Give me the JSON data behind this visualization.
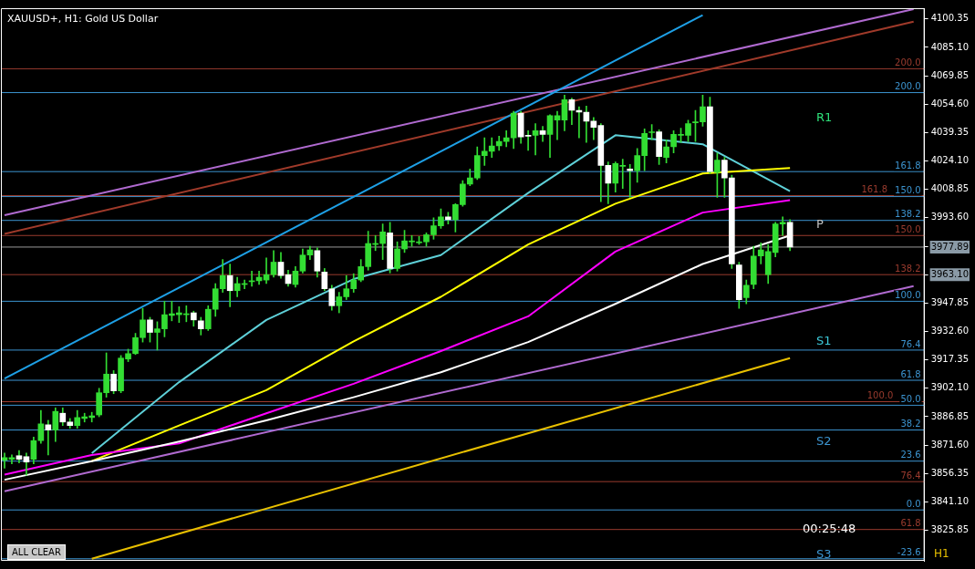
{
  "chart_data": {
    "type": "candlestick",
    "title": "XAUUSD+, H1:  Gold US Dollar",
    "color": "#33dd33",
    "colors": [
      "#33dd33",
      "#33dd33",
      "#ffffff",
      "#ffffff",
      "#33dd33",
      "#33dd33",
      "#ffffff",
      "#33dd33",
      "#ffffff",
      "#ffffff",
      "#33dd33",
      "#33dd33",
      "#33dd33",
      "#33dd33",
      "#33dd33",
      "#ffffff",
      "#33dd33",
      "#33dd33",
      "#33dd33",
      "#33dd33",
      "#ffffff",
      "#33dd33",
      "#33dd33",
      "#33dd33",
      "#33dd33",
      "#33dd33",
      "#ffffff",
      "#ffffff",
      "#33dd33",
      "#33dd33",
      "#33dd33",
      "#ffffff",
      "#33dd33",
      "#33dd33",
      "#33dd33",
      "#33dd33",
      "#33dd33",
      "#33dd33",
      "#ffffff",
      "#ffffff",
      "#33dd33",
      "#33dd33",
      "#33dd33",
      "#ffffff",
      "#ffffff",
      "#ffffff",
      "#33dd33",
      "#33dd33",
      "#33dd33",
      "#33dd33",
      "#33dd33",
      "#33dd33",
      "#33dd33",
      "#ffffff",
      "#33dd33",
      "#33dd33",
      "#33dd33",
      "#33dd33",
      "#33dd33",
      "#33dd33",
      "#33dd33",
      "#ffffff",
      "#33dd33",
      "#33dd33",
      "#33dd33",
      "#33dd33",
      "#33dd33",
      "#33dd33",
      "#33dd33",
      "#33dd33",
      "#33dd33",
      "#ffffff",
      "#ffffff",
      "#33dd33",
      "#ffffff",
      "#33dd33",
      "#33dd33",
      "#33dd33",
      "#ffffff",
      "#ffffff",
      "#ffffff",
      "#ffffff",
      "#ffffff",
      "#ffffff",
      "#33dd33",
      "#33dd33",
      "#ffffff",
      "#33dd33",
      "#33dd33",
      "#33dd33",
      "#ffffff",
      "#33dd33",
      "#33dd33",
      "#33dd33",
      "#33dd33",
      "#33dd33",
      "#33dd33",
      "#ffffff",
      "#33dd33",
      "#ffffff",
      "#ffffff",
      "#ffffff",
      "#33dd33",
      "#33dd33",
      "#33dd33",
      "#33dd33",
      "#33dd33",
      "#33dd33",
      "#ffffff",
      null,
      null,
      null,
      null,
      null,
      null,
      null,
      null,
      null,
      null,
      null,
      null,
      null,
      null,
      null,
      null,
      null,
      null
    ],
    "categories": [
      null,
      null,
      null,
      null,
      null,
      null,
      null,
      null,
      null,
      null,
      null,
      null,
      null,
      null,
      null,
      null,
      null,
      null,
      null,
      null,
      null,
      null,
      null,
      null,
      null,
      null,
      null,
      null,
      null,
      null,
      null,
      null,
      null,
      null,
      null,
      null,
      null,
      null,
      null,
      null,
      null,
      null,
      null,
      null,
      null,
      null,
      null,
      null,
      null,
      null,
      null,
      null,
      null,
      null,
      null,
      null,
      null,
      null,
      null,
      null,
      null,
      null,
      null,
      null,
      null,
      null,
      null,
      null,
      null,
      null,
      null,
      null,
      null,
      null,
      null,
      null,
      null,
      null,
      null,
      null,
      null,
      null,
      null,
      null,
      null,
      null,
      null,
      null,
      null,
      null,
      null,
      null,
      null,
      null,
      null,
      null,
      null,
      null,
      null,
      null,
      null,
      null,
      null,
      null,
      null,
      null,
      null,
      null,
      null,
      null,
      null,
      null,
      null,
      null,
      null,
      null,
      null,
      null,
      null,
      null,
      null,
      null,
      null,
      null,
      null,
      null,
      null
    ],
    "ohlc": [
      [
        3863.5,
        3867.3,
        3859.2,
        3864.9
      ],
      [
        3864.0,
        3866.3,
        3861.6,
        3864.9
      ],
      [
        3865.9,
        3868.7,
        3862.0,
        3864.0
      ],
      [
        3865.4,
        3867.3,
        3855.4,
        3862.5
      ],
      [
        3864.0,
        3875.9,
        3861.6,
        3874.0
      ],
      [
        3874.0,
        3890.2,
        3872.5,
        3883.0
      ],
      [
        3882.5,
        3884.9,
        3866.3,
        3879.7
      ],
      [
        3879.7,
        3891.6,
        3873.5,
        3889.7
      ],
      [
        3888.7,
        3891.6,
        3882.1,
        3884.0
      ],
      [
        3884.0,
        3885.9,
        3880.6,
        3882.1
      ],
      [
        3882.1,
        3890.2,
        3880.6,
        3886.4
      ],
      [
        3885.9,
        3888.7,
        3884.0,
        3886.8
      ],
      [
        3886.4,
        3889.2,
        3884.0,
        3887.3
      ],
      [
        3887.8,
        3902.1,
        3886.8,
        3899.7
      ],
      [
        3899.7,
        3921.1,
        3897.3,
        3909.7
      ],
      [
        3909.7,
        3911.6,
        3899.2,
        3900.7
      ],
      [
        3900.7,
        3919.7,
        3899.7,
        3918.3
      ],
      [
        3917.8,
        3923.1,
        3916.4,
        3920.7
      ],
      [
        3920.7,
        3931.6,
        3920.2,
        3929.3
      ],
      [
        3929.3,
        3945.0,
        3926.9,
        3938.8
      ],
      [
        3938.8,
        3940.2,
        3926.9,
        3932.1
      ],
      [
        3932.1,
        3937.8,
        3922.6,
        3934.0
      ],
      [
        3934.0,
        3948.8,
        3929.7,
        3941.6
      ],
      [
        3941.2,
        3948.8,
        3938.3,
        3942.1
      ],
      [
        3941.6,
        3945.9,
        3937.4,
        3942.6
      ],
      [
        3941.6,
        3946.4,
        3937.8,
        3942.1
      ],
      [
        3942.6,
        3943.5,
        3935.4,
        3938.8
      ],
      [
        3938.3,
        3940.2,
        3930.7,
        3934.0
      ],
      [
        3934.0,
        3946.4,
        3933.1,
        3944.5
      ],
      [
        3944.5,
        3958.3,
        3940.7,
        3955.5
      ],
      [
        3955.5,
        3971.2,
        3953.6,
        3962.6
      ],
      [
        3962.6,
        3968.8,
        3945.9,
        3954.5
      ],
      [
        3954.5,
        3961.7,
        3951.2,
        3958.3
      ],
      [
        3957.8,
        3960.2,
        3955.5,
        3958.3
      ],
      [
        3959.3,
        3965.0,
        3956.9,
        3959.8
      ],
      [
        3959.8,
        3965.0,
        3957.8,
        3961.7
      ],
      [
        3960.2,
        3972.1,
        3958.3,
        3963.1
      ],
      [
        3963.1,
        3976.0,
        3961.7,
        3969.8
      ],
      [
        3969.8,
        3975.0,
        3961.2,
        3962.6
      ],
      [
        3963.1,
        3965.5,
        3956.9,
        3958.3
      ],
      [
        3957.8,
        3967.4,
        3956.4,
        3965.0
      ],
      [
        3965.0,
        3976.9,
        3964.0,
        3973.6
      ],
      [
        3973.6,
        3978.3,
        3971.2,
        3976.4
      ],
      [
        3976.0,
        3977.4,
        3961.7,
        3965.0
      ],
      [
        3964.5,
        3966.4,
        3954.5,
        3955.5
      ],
      [
        3955.5,
        3957.4,
        3944.0,
        3946.4
      ],
      [
        3946.4,
        3953.6,
        3942.6,
        3951.2
      ],
      [
        3951.2,
        3962.6,
        3949.7,
        3955.5
      ],
      [
        3955.5,
        3963.6,
        3953.6,
        3960.2
      ],
      [
        3960.2,
        3971.2,
        3959.3,
        3967.4
      ],
      [
        3967.4,
        3986.4,
        3965.5,
        3979.8
      ],
      [
        3979.3,
        3984.1,
        3976.0,
        3979.8
      ],
      [
        3979.8,
        3990.3,
        3971.2,
        3986.0
      ],
      [
        3985.5,
        3991.2,
        3964.0,
        3966.4
      ],
      [
        3966.4,
        3980.7,
        3965.0,
        3976.9
      ],
      [
        3976.9,
        3986.9,
        3975.0,
        3981.2
      ],
      [
        3980.7,
        3984.1,
        3978.3,
        3981.2
      ],
      [
        3980.2,
        3983.6,
        3979.3,
        3980.7
      ],
      [
        3980.7,
        3985.5,
        3978.3,
        3984.5
      ],
      [
        3984.5,
        3993.6,
        3982.1,
        3989.3
      ],
      [
        3989.3,
        3998.4,
        3987.9,
        3994.1
      ],
      [
        3994.1,
        3996.5,
        3990.3,
        3992.6
      ],
      [
        3992.6,
        4001.2,
        3986.0,
        4000.7
      ],
      [
        4000.7,
        4013.6,
        3999.8,
        4011.7
      ],
      [
        4011.7,
        4019.8,
        4010.8,
        4015.0
      ],
      [
        4015.0,
        4031.7,
        4014.1,
        4027.0
      ],
      [
        4027.0,
        4036.5,
        4021.7,
        4029.3
      ],
      [
        4029.3,
        4036.5,
        4026.0,
        4032.2
      ],
      [
        4032.2,
        4037.4,
        4029.8,
        4034.6
      ],
      [
        4034.6,
        4040.3,
        4031.7,
        4036.5
      ],
      [
        4036.5,
        4050.8,
        4030.8,
        4049.8
      ],
      [
        4049.8,
        4050.8,
        4033.6,
        4037.0
      ],
      [
        4037.9,
        4040.3,
        4029.8,
        4037.4
      ],
      [
        4037.9,
        4044.1,
        4027.4,
        4040.3
      ],
      [
        4040.3,
        4042.7,
        4034.6,
        4038.4
      ],
      [
        4038.4,
        4048.9,
        4026.0,
        4048.4
      ],
      [
        4046.0,
        4050.8,
        4035.5,
        4048.4
      ],
      [
        4046.0,
        4059.4,
        4040.3,
        4057.0
      ],
      [
        4057.0,
        4057.9,
        4043.6,
        4051.3
      ],
      [
        4051.3,
        4053.2,
        4036.5,
        4050.3
      ],
      [
        4050.3,
        4053.6,
        4034.1,
        4045.5
      ],
      [
        4045.5,
        4047.5,
        4035.5,
        4042.2
      ],
      [
        4043.2,
        4044.1,
        4002.2,
        4021.7
      ],
      [
        4021.7,
        4023.6,
        4001.2,
        4012.2
      ],
      [
        4012.2,
        4023.6,
        4007.4,
        4022.7
      ],
      [
        4021.2,
        4025.0,
        4009.3,
        4021.7
      ],
      [
        4019.8,
        4022.2,
        4004.6,
        4018.9
      ],
      [
        4018.9,
        4030.8,
        4012.7,
        4027.0
      ],
      [
        4027.0,
        4041.3,
        4018.9,
        4038.9
      ],
      [
        4039.3,
        4043.6,
        4035.5,
        4039.8
      ],
      [
        4039.8,
        4040.8,
        4022.2,
        4026.5
      ],
      [
        4026.0,
        4035.5,
        4023.1,
        4031.7
      ],
      [
        4031.7,
        4040.3,
        4028.4,
        4038.4
      ],
      [
        4037.9,
        4041.7,
        4034.1,
        4038.4
      ],
      [
        4037.9,
        4046.0,
        4034.6,
        4044.1
      ],
      [
        4044.6,
        4051.3,
        4034.6,
        4045.1
      ],
      [
        4045.1,
        4059.4,
        4042.7,
        4053.2
      ],
      [
        4053.2,
        4058.4,
        4017.4,
        4018.4
      ],
      [
        4017.9,
        4028.4,
        4004.6,
        4024.6
      ],
      [
        4024.6,
        4026.0,
        4004.6,
        4015.0
      ],
      [
        4015.0,
        4016.5,
        3966.4,
        3968.8
      ],
      [
        3968.3,
        3969.8,
        3945.0,
        3949.7
      ],
      [
        3950.7,
        3960.2,
        3947.4,
        3957.4
      ],
      [
        3957.8,
        3978.3,
        3955.5,
        3973.1
      ],
      [
        3973.1,
        3980.2,
        3968.8,
        3976.4
      ],
      [
        3963.1,
        3979.3,
        3958.3,
        3975.5
      ],
      [
        3975.0,
        3991.2,
        3972.6,
        3990.3
      ],
      [
        3990.3,
        3994.1,
        3984.1,
        3991.2
      ],
      [
        3991.2,
        3992.6,
        3976.0,
        3977.9
      ],
      null,
      null,
      null,
      null,
      null,
      null,
      null,
      null,
      null,
      null,
      null,
      null,
      null,
      null,
      null,
      null,
      null,
      null
    ],
    "series": [
      {
        "type": "line",
        "color": "#ffffff",
        "values": [
          3853.0,
          null,
          null,
          null,
          null,
          null,
          null,
          null,
          null,
          null,
          null,
          null,
          3863.0,
          null,
          null,
          null,
          null,
          null,
          null,
          null,
          null,
          null,
          null,
          null,
          3873.5,
          null,
          null,
          null,
          null,
          null,
          null,
          null,
          null,
          null,
          null,
          null,
          3884.9,
          null,
          null,
          null,
          null,
          null,
          null,
          null,
          null,
          null,
          null,
          null,
          3897.3,
          null,
          null,
          null,
          null,
          null,
          null,
          null,
          null,
          null,
          null,
          null,
          3910.7,
          null,
          null,
          null,
          null,
          null,
          null,
          null,
          null,
          null,
          null,
          null,
          3926.9,
          null,
          null,
          null,
          null,
          null,
          null,
          null,
          null,
          null,
          null,
          null,
          3947.4,
          null,
          null,
          null,
          null,
          null,
          null,
          null,
          null,
          null,
          null,
          null,
          3968.8,
          null,
          null,
          null,
          null,
          null,
          null,
          null,
          null,
          null,
          null,
          null,
          3984.1,
          null,
          null,
          null,
          null,
          null,
          null,
          null,
          null,
          null,
          null,
          null,
          null,
          null,
          null,
          null,
          null,
          null,
          null
        ]
      },
      {
        "type": "line",
        "color": "#ff00ff",
        "values": [
          3855.8,
          null,
          null,
          null,
          null,
          null,
          null,
          null,
          null,
          null,
          null,
          null,
          3866.3,
          null,
          null,
          null,
          null,
          null,
          null,
          null,
          null,
          null,
          null,
          null,
          3872.5,
          null,
          null,
          null,
          null,
          null,
          null,
          null,
          null,
          null,
          null,
          null,
          3888.7,
          null,
          null,
          null,
          null,
          null,
          null,
          null,
          null,
          null,
          null,
          null,
          3904.5,
          null,
          null,
          null,
          null,
          null,
          null,
          null,
          null,
          null,
          null,
          null,
          3922.1,
          null,
          null,
          null,
          null,
          null,
          null,
          null,
          null,
          null,
          null,
          null,
          3940.7,
          null,
          null,
          null,
          null,
          null,
          null,
          null,
          null,
          null,
          null,
          null,
          3975.5,
          null,
          null,
          null,
          null,
          null,
          null,
          null,
          null,
          null,
          null,
          null,
          3996.4,
          null,
          null,
          null,
          null,
          null,
          null,
          null,
          null,
          null,
          null,
          null,
          4003.1,
          null,
          null,
          null,
          null,
          null,
          null,
          null,
          null,
          null,
          null,
          null,
          null,
          null,
          null,
          null,
          null,
          null,
          null
        ]
      },
      {
        "type": "line",
        "color": "#ffff00",
        "values": [
          null,
          null,
          null,
          null,
          null,
          null,
          null,
          null,
          null,
          null,
          null,
          null,
          3863.0,
          null,
          null,
          null,
          null,
          null,
          null,
          null,
          null,
          null,
          null,
          null,
          3882.1,
          null,
          null,
          null,
          null,
          null,
          null,
          null,
          null,
          null,
          null,
          null,
          3901.1,
          null,
          null,
          null,
          null,
          null,
          null,
          null,
          null,
          null,
          null,
          null,
          3927.3,
          null,
          null,
          null,
          null,
          null,
          null,
          null,
          null,
          null,
          null,
          null,
          3951.2,
          null,
          null,
          null,
          null,
          null,
          null,
          null,
          null,
          null,
          null,
          null,
          3979.3,
          null,
          null,
          null,
          null,
          null,
          null,
          null,
          null,
          null,
          null,
          null,
          4001.2,
          null,
          null,
          null,
          null,
          null,
          null,
          null,
          null,
          null,
          null,
          null,
          4017.4,
          null,
          null,
          null,
          null,
          null,
          null,
          null,
          null,
          null,
          null,
          null,
          4020.3,
          null,
          null,
          null,
          null,
          null,
          null,
          null,
          null,
          null,
          null,
          null,
          null,
          null,
          null,
          null,
          null,
          null,
          null
        ]
      },
      {
        "type": "line",
        "color": "#5ed0d8",
        "values": [
          null,
          null,
          null,
          null,
          null,
          null,
          null,
          null,
          null,
          null,
          null,
          null,
          3867.3,
          null,
          null,
          null,
          null,
          null,
          null,
          null,
          null,
          null,
          null,
          null,
          3905.4,
          null,
          null,
          null,
          null,
          null,
          null,
          null,
          null,
          null,
          null,
          null,
          3938.8,
          null,
          null,
          null,
          null,
          null,
          null,
          null,
          null,
          null,
          null,
          null,
          3960.7,
          null,
          null,
          null,
          null,
          null,
          null,
          null,
          null,
          null,
          null,
          null,
          3973.6,
          null,
          null,
          null,
          null,
          null,
          null,
          null,
          null,
          null,
          null,
          null,
          4006.9,
          null,
          null,
          null,
          null,
          null,
          null,
          null,
          null,
          null,
          null,
          null,
          4037.9,
          null,
          null,
          null,
          null,
          null,
          null,
          null,
          null,
          null,
          null,
          null,
          4033.1,
          null,
          null,
          null,
          null,
          null,
          null,
          null,
          null,
          null,
          null,
          null,
          4007.9,
          null,
          null,
          null,
          null,
          null,
          null,
          null,
          null,
          null,
          null,
          null,
          null,
          null,
          null,
          null,
          null,
          null,
          null
        ]
      },
      {
        "type": "line",
        "color": "#1ea0e6",
        "values": [
          3907.3,
          null,
          null,
          null,
          null,
          null,
          null,
          null,
          null,
          null,
          null,
          null,
          null,
          null,
          null,
          null,
          null,
          null,
          null,
          null,
          null,
          null,
          null,
          null,
          null,
          null,
          null,
          null,
          null,
          null,
          null,
          null,
          null,
          null,
          null,
          null,
          null,
          null,
          null,
          null,
          null,
          null,
          null,
          null,
          null,
          null,
          null,
          null,
          null,
          null,
          null,
          null,
          null,
          null,
          null,
          null,
          null,
          null,
          null,
          null,
          null,
          null,
          null,
          null,
          null,
          null,
          null,
          null,
          null,
          null,
          null,
          null,
          null,
          null,
          null,
          null,
          null,
          null,
          null,
          null,
          null,
          null,
          null,
          null,
          null,
          null,
          null,
          null,
          null,
          null,
          null,
          null,
          null,
          null,
          null,
          null,
          4102.4,
          null,
          null,
          null,
          null,
          null,
          null,
          null,
          null,
          null,
          null,
          null,
          null,
          null,
          null,
          null,
          null,
          null,
          null,
          null,
          null,
          null,
          null,
          null,
          null,
          null,
          null,
          null,
          null,
          null,
          null
        ]
      },
      {
        "type": "line",
        "color": "#b06ad0",
        "values": [
          3995.0,
          null,
          null,
          null,
          null,
          null,
          null,
          null,
          null,
          null,
          null,
          null,
          null,
          null,
          null,
          null,
          null,
          null,
          null,
          null,
          null,
          null,
          null,
          null,
          null,
          null,
          null,
          null,
          null,
          null,
          null,
          null,
          null,
          null,
          null,
          null,
          null,
          null,
          null,
          null,
          null,
          null,
          null,
          null,
          null,
          null,
          null,
          null,
          null,
          null,
          null,
          null,
          null,
          null,
          null,
          null,
          null,
          null,
          null,
          null,
          null,
          null,
          null,
          null,
          null,
          null,
          null,
          null,
          null,
          null,
          null,
          null,
          null,
          null,
          null,
          null,
          null,
          null,
          null,
          null,
          null,
          null,
          null,
          null,
          null,
          null,
          null,
          null,
          null,
          null,
          null,
          null,
          null,
          null,
          null,
          null,
          null,
          null,
          null,
          null,
          null,
          null,
          null,
          null,
          null,
          null,
          null,
          null,
          null,
          null,
          null,
          null,
          null,
          null,
          null,
          null,
          null,
          null,
          null,
          null,
          null,
          null,
          null,
          null,
          null,
          4105.6,
          null
        ]
      },
      {
        "type": "line",
        "color": "#a03a2a",
        "values": [
          3985.0,
          null,
          null,
          null,
          null,
          null,
          null,
          null,
          null,
          null,
          null,
          null,
          null,
          null,
          null,
          null,
          null,
          null,
          null,
          null,
          null,
          null,
          null,
          null,
          null,
          null,
          null,
          null,
          null,
          null,
          null,
          null,
          null,
          null,
          null,
          null,
          null,
          null,
          null,
          null,
          null,
          null,
          null,
          null,
          null,
          null,
          null,
          null,
          null,
          null,
          null,
          null,
          null,
          null,
          null,
          null,
          null,
          null,
          null,
          null,
          null,
          null,
          null,
          null,
          null,
          null,
          null,
          null,
          null,
          null,
          null,
          null,
          null,
          null,
          null,
          null,
          null,
          null,
          null,
          null,
          null,
          null,
          null,
          null,
          null,
          null,
          null,
          null,
          null,
          null,
          null,
          null,
          null,
          null,
          null,
          null,
          null,
          null,
          null,
          null,
          null,
          null,
          null,
          null,
          null,
          null,
          null,
          null,
          null,
          null,
          null,
          null,
          null,
          null,
          null,
          null,
          null,
          null,
          null,
          null,
          null,
          null,
          null,
          null,
          null,
          4098.9,
          null
        ]
      },
      {
        "type": "line",
        "color": "#b06ad0",
        "values": [
          3846.8,
          null,
          null,
          null,
          null,
          null,
          null,
          null,
          null,
          null,
          null,
          null,
          null,
          null,
          null,
          null,
          null,
          null,
          null,
          null,
          null,
          null,
          null,
          null,
          null,
          null,
          null,
          null,
          null,
          null,
          null,
          null,
          null,
          null,
          null,
          null,
          null,
          null,
          null,
          null,
          null,
          null,
          null,
          null,
          null,
          null,
          null,
          null,
          null,
          null,
          null,
          null,
          null,
          null,
          null,
          null,
          null,
          null,
          null,
          null,
          null,
          null,
          null,
          null,
          null,
          null,
          null,
          null,
          null,
          null,
          null,
          null,
          null,
          null,
          null,
          null,
          null,
          null,
          null,
          null,
          null,
          null,
          null,
          null,
          null,
          null,
          null,
          null,
          null,
          null,
          null,
          null,
          null,
          null,
          null,
          null,
          null,
          null,
          null,
          null,
          null,
          null,
          null,
          null,
          null,
          null,
          null,
          null,
          null,
          null,
          null,
          null,
          null,
          null,
          null,
          null,
          null,
          null,
          null,
          null,
          null,
          null,
          null,
          null,
          null,
          3956.9,
          null
        ]
      },
      {
        "type": "line",
        "color": "#e8c000",
        "values": [
          null,
          null,
          null,
          null,
          null,
          null,
          null,
          null,
          null,
          null,
          null,
          null,
          3810.6,
          null,
          null,
          null,
          null,
          null,
          null,
          null,
          null,
          null,
          null,
          null,
          null,
          null,
          null,
          null,
          null,
          null,
          null,
          null,
          null,
          null,
          null,
          null,
          null,
          null,
          null,
          null,
          null,
          null,
          null,
          null,
          null,
          null,
          null,
          null,
          null,
          null,
          null,
          null,
          null,
          null,
          null,
          null,
          null,
          null,
          null,
          null,
          null,
          null,
          null,
          null,
          null,
          null,
          null,
          null,
          null,
          null,
          null,
          null,
          null,
          null,
          null,
          null,
          null,
          null,
          null,
          null,
          null,
          null,
          null,
          null,
          null,
          null,
          null,
          null,
          null,
          null,
          null,
          null,
          null,
          null,
          null,
          null,
          null,
          null,
          null,
          null,
          null,
          null,
          null,
          null,
          null,
          null,
          null,
          null,
          3918.3,
          null,
          null,
          null,
          null,
          null,
          null,
          null,
          null,
          null,
          null,
          null,
          null,
          null,
          null,
          null,
          null,
          null,
          null
        ]
      }
    ],
    "ylim": [
      3809.5,
      4106.1
    ],
    "yticks": [
      4100.35,
      {
        "value": 4085.1,
        "label": "4085.10"
      },
      4069.85,
      {
        "value": 4054.6,
        "label": "4054.60"
      },
      4039.35,
      {
        "value": 4024.1,
        "label": "4024.10"
      },
      4008.85,
      {
        "value": 3993.6,
        "label": "3993.60"
      },
      3977.89,
      {
        "value": 3963.1,
        "label": "3963.10"
      },
      3947.85,
      {
        "value": 3932.6,
        "label": "3932.60"
      },
      3917.35,
      {
        "value": 3902.1,
        "label": "3902.10"
      },
      3886.85,
      {
        "value": 3871.6,
        "label": "3871.60"
      },
      3856.35,
      {
        "value": 3841.1,
        "label": "3841.10"
      },
      3825.85
    ],
    "ref_lines": [
      {
        "axis": "y",
        "value": 4060.8,
        "color": "#3c94d0"
      },
      {
        "axis": "y",
        "value": 4018.4,
        "color": "#3c94d0"
      },
      {
        "axis": "y",
        "value": 4005.0,
        "color": "#3c94d0"
      },
      {
        "axis": "y",
        "value": 3992.2,
        "color": "#3c94d0"
      },
      {
        "axis": "y",
        "value": 3948.8,
        "color": "#3c94d0"
      },
      {
        "axis": "y",
        "value": 3922.6,
        "color": "#3c94d0"
      },
      {
        "axis": "y",
        "value": 3906.4,
        "color": "#3c94d0"
      },
      {
        "axis": "y",
        "value": 3893.0,
        "color": "#3c94d0"
      },
      {
        "axis": "y",
        "value": 3879.7,
        "color": "#3c94d0"
      },
      {
        "axis": "y",
        "value": 3863.0,
        "color": "#3c94d0"
      },
      {
        "axis": "y",
        "value": 3836.8,
        "color": "#3c94d0"
      },
      {
        "axis": "y",
        "value": 3810.6,
        "color": "#3c94d0"
      },
      {
        "axis": "y",
        "value": 4073.6,
        "color": "#9a3b2e"
      },
      {
        "axis": "y",
        "value": 4005.5,
        "color": "#9a3b2e"
      },
      {
        "axis": "y",
        "value": 3984.1,
        "color": "#9a3b2e"
      },
      {
        "axis": "y",
        "value": 3963.1,
        "color": "#9a3b2e"
      },
      {
        "axis": "y",
        "value": 3894.9,
        "color": "#9a3b2e"
      },
      {
        "axis": "y",
        "value": 3852.0,
        "color": "#9a3b2e"
      },
      {
        "axis": "y",
        "value": 3826.3,
        "color": "#9a3b2e"
      },
      {
        "axis": "y",
        "value": 3977.89,
        "color": "#9a9a9a"
      }
    ],
    "annotations": [
      {
        "text": "200.0",
        "y": 4060.8
      },
      {
        "text": "161.8",
        "y": 4018.4
      },
      {
        "text": "150.0",
        "y": 4005.0
      },
      {
        "text": "138.2",
        "y": 3992.2
      },
      {
        "text": "100.0",
        "y": 3948.8
      },
      {
        "text": "76.4",
        "y": 3922.6
      },
      {
        "text": "61.8",
        "y": 3906.4
      },
      {
        "text": "50.0",
        "y": 3893.0
      },
      {
        "text": "38.2",
        "y": 3879.7
      },
      {
        "text": "23.6",
        "y": 3863.0
      },
      {
        "text": "0.0",
        "y": 3836.8
      },
      {
        "text": "-23.6",
        "y": 3810.6
      },
      {
        "text": "200.0",
        "y": 4073.6
      },
      {
        "text": "161.8",
        "y": 4005.5
      },
      {
        "text": "150.0",
        "y": 3984.1
      },
      {
        "text": "138.2",
        "y": 3963.1
      },
      {
        "text": "100.0",
        "y": 3894.9
      },
      {
        "text": "76.4",
        "y": 3852.0
      },
      {
        "text": "61.8",
        "y": 3826.3
      },
      "R1",
      "P",
      "S1",
      "S2",
      "S3",
      "00:25:48",
      "H1",
      "ALL CLEAR"
    ]
  }
}
